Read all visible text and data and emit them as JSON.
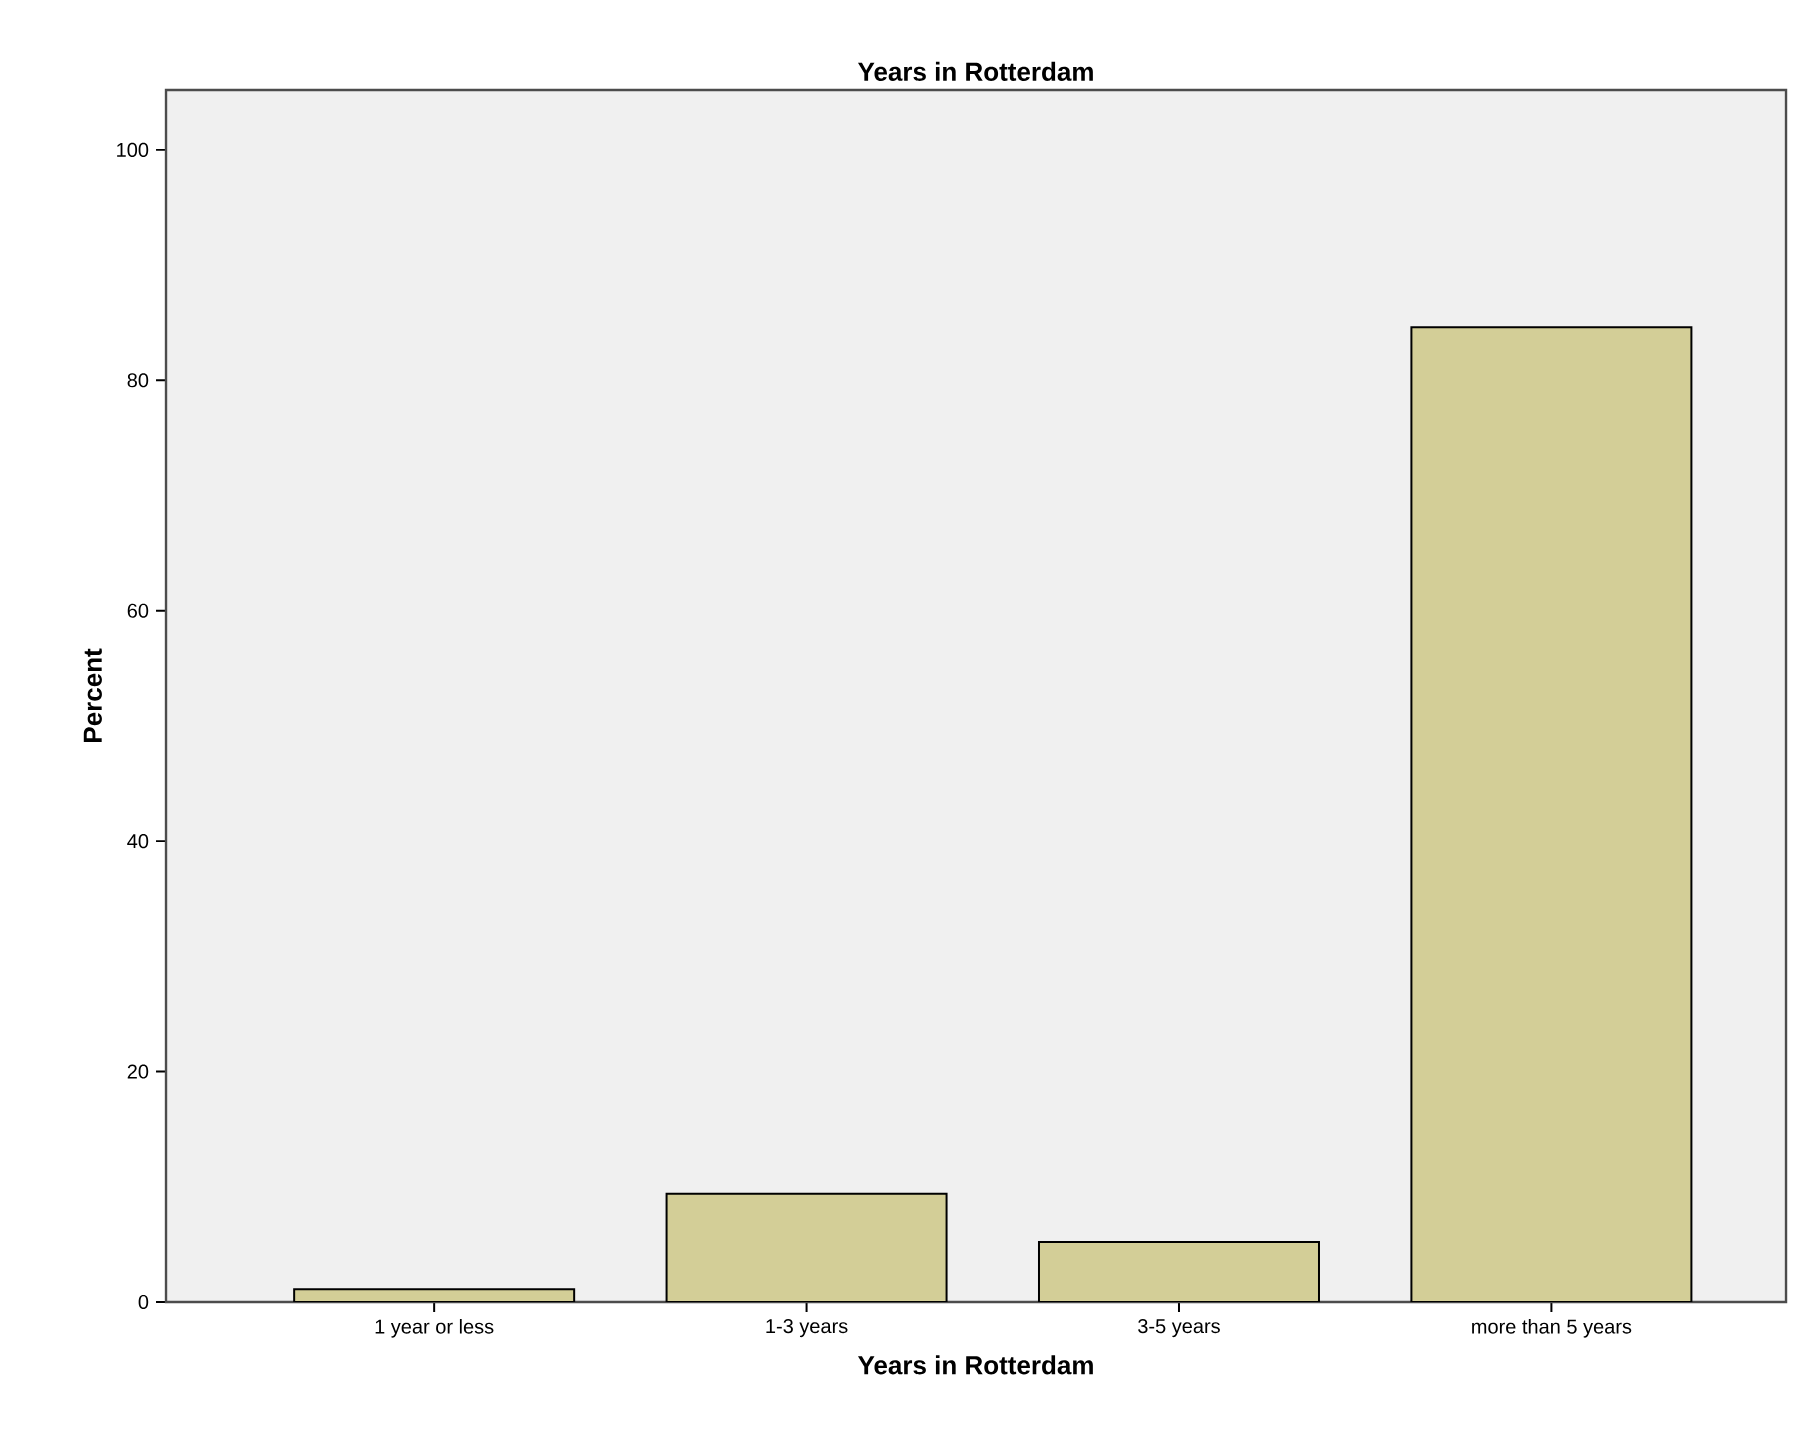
{
  "chart_data": {
    "type": "bar",
    "title": "Years in Rotterdam",
    "xlabel": "Years in Rotterdam",
    "ylabel": "Percent",
    "categories": [
      "1 year or less",
      "1-3 years",
      "3-5 years",
      "more than 5 years"
    ],
    "values": [
      1.1,
      9.4,
      5.2,
      84.6
    ],
    "color": "#d3ce97",
    "ylim": [
      0,
      105.2
    ],
    "yticks": [
      0,
      20,
      40,
      60,
      80,
      100
    ]
  }
}
